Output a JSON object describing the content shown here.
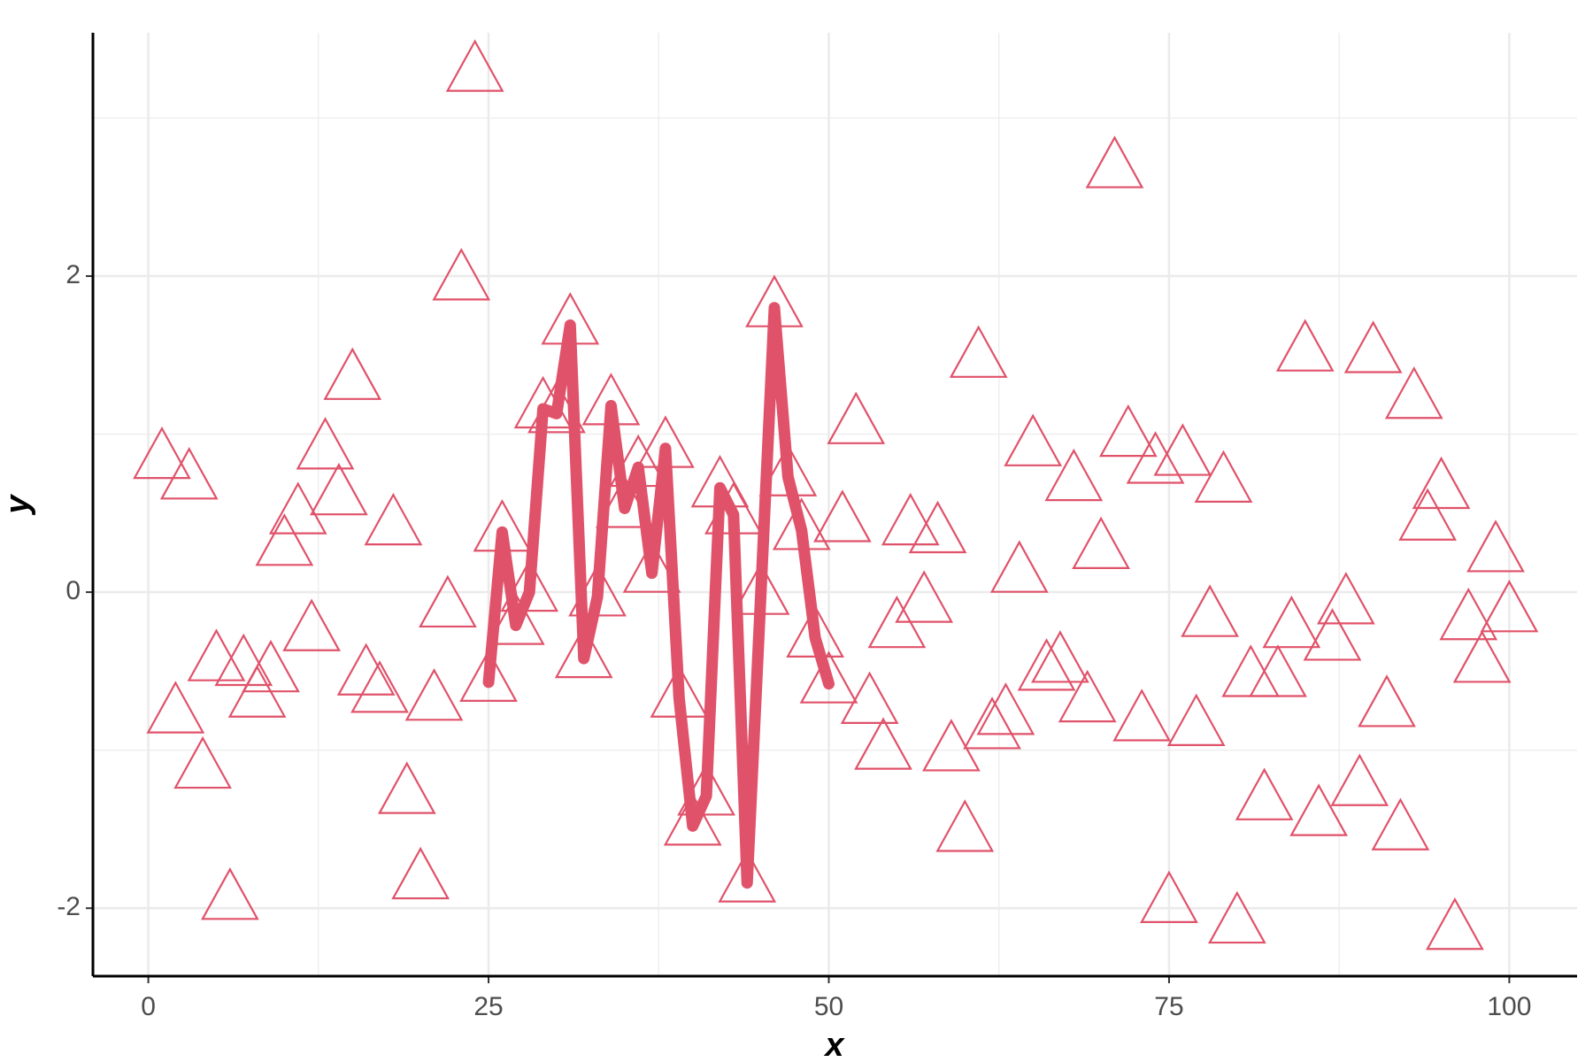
{
  "chart_data": {
    "type": "scatter",
    "xlabel": "x",
    "ylabel": "y",
    "xlim": [
      -4.07,
      104.98
    ],
    "ylim": [
      -2.43,
      3.54
    ],
    "xticks": [
      0,
      25,
      50,
      75,
      100
    ],
    "yticks": [
      -2,
      0,
      2
    ],
    "grid": true,
    "minor_grid": true,
    "series": [
      {
        "type": "scatter",
        "marker": "triangle-open",
        "color": "#e0526a",
        "x": [
          1,
          2,
          3,
          4,
          5,
          6,
          7,
          8,
          9,
          10,
          11,
          12,
          13,
          14,
          15,
          16,
          17,
          18,
          19,
          20,
          21,
          22,
          23,
          24,
          25,
          26,
          27,
          28,
          29,
          30,
          31,
          32,
          33,
          34,
          35,
          36,
          37,
          38,
          39,
          40,
          41,
          42,
          43,
          44,
          45,
          46,
          47,
          48,
          49,
          50,
          51,
          52,
          53,
          54,
          55,
          56,
          57,
          58,
          59,
          60,
          61,
          62,
          63,
          64,
          65,
          66,
          67,
          68,
          69,
          70,
          71,
          72,
          73,
          74,
          75,
          76,
          77,
          78,
          79,
          80,
          81,
          82,
          83,
          84,
          85,
          86,
          87,
          88,
          89,
          90,
          91,
          92,
          93,
          94,
          95,
          96,
          97,
          98,
          99,
          100
        ],
        "y": [
          0.84,
          -0.77,
          0.71,
          -1.12,
          -0.44,
          -1.95,
          -0.47,
          -0.67,
          -0.51,
          0.29,
          0.49,
          -0.25,
          0.9,
          0.61,
          1.34,
          -0.53,
          -0.64,
          0.42,
          -1.28,
          -1.82,
          -0.69,
          -0.1,
          1.97,
          3.29,
          -0.57,
          0.38,
          -0.21,
          0.0,
          1.16,
          1.13,
          1.69,
          -0.42,
          -0.03,
          1.18,
          0.53,
          0.79,
          0.12,
          0.91,
          -0.67,
          -1.48,
          -1.29,
          0.66,
          0.49,
          -1.84,
          -0.02,
          1.8,
          0.73,
          0.39,
          -0.29,
          -0.58,
          0.44,
          1.06,
          -0.71,
          -1.0,
          -0.23,
          0.42,
          -0.07,
          0.37,
          -1.01,
          -1.52,
          1.48,
          -0.87,
          -0.78,
          0.12,
          0.92,
          -0.5,
          -0.45,
          0.7,
          -0.7,
          0.27,
          2.68,
          0.98,
          -0.82,
          0.81,
          -1.97,
          0.86,
          -0.85,
          -0.16,
          0.69,
          -2.1,
          -0.54,
          -1.32,
          -0.54,
          -0.23,
          1.52,
          -1.42,
          -0.31,
          -0.08,
          -1.23,
          1.51,
          -0.73,
          -1.51,
          1.22,
          0.45,
          0.65,
          -2.14,
          -0.18,
          -0.45,
          0.25,
          -0.13
        ]
      },
      {
        "type": "line",
        "color": "#e0526a",
        "x": [
          25,
          26,
          27,
          28,
          29,
          30,
          31,
          32,
          33,
          34,
          35,
          36,
          37,
          38,
          39,
          40,
          41,
          42,
          43,
          44,
          45,
          46,
          47,
          48,
          49,
          50
        ],
        "y": [
          -0.57,
          0.38,
          -0.21,
          0.0,
          1.16,
          1.13,
          1.69,
          -0.42,
          -0.03,
          1.18,
          0.53,
          0.79,
          0.12,
          0.91,
          -0.67,
          -1.48,
          -1.29,
          0.66,
          0.49,
          -1.84,
          -0.02,
          1.8,
          0.73,
          0.39,
          -0.29,
          -0.58
        ]
      }
    ]
  }
}
